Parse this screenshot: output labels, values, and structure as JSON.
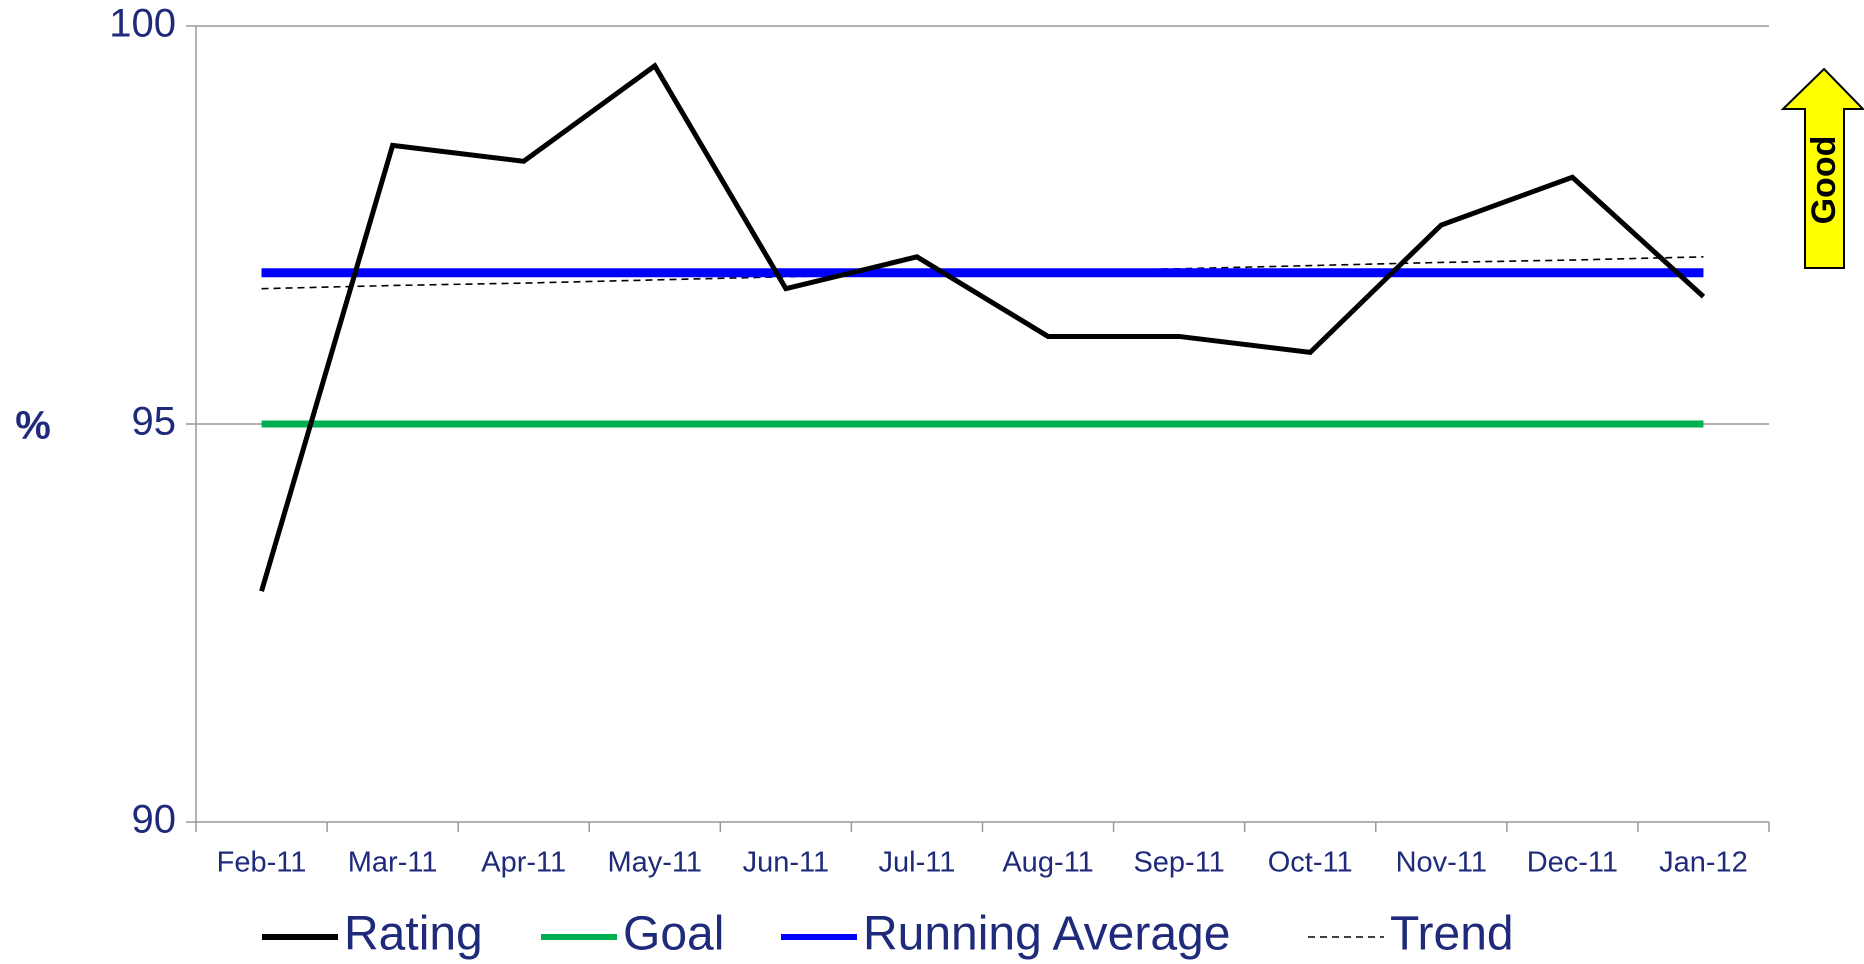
{
  "chart_data": {
    "type": "line",
    "y_label": "%",
    "annotations": [
      "Good"
    ],
    "categories": [
      "Feb-11",
      "Mar-11",
      "Apr-11",
      "May-11",
      "Jun-11",
      "Jul-11",
      "Aug-11",
      "Sep-11",
      "Oct-11",
      "Nov-11",
      "Dec-11",
      "Jan-12"
    ],
    "series": [
      {
        "name": "Rating",
        "color": "#000000",
        "values": [
          92.9,
          98.5,
          98.3,
          99.5,
          96.7,
          97.1,
          96.1,
          96.1,
          95.9,
          97.5,
          98.1,
          96.6
        ]
      },
      {
        "name": "Goal",
        "color": "#00b050",
        "values": [
          95,
          95,
          95,
          95,
          95,
          95,
          95,
          95,
          95,
          95,
          95,
          95
        ]
      },
      {
        "name": "Running Average",
        "color": "#0000ff",
        "values": [
          96.9,
          96.9,
          96.9,
          96.9,
          96.9,
          96.9,
          96.9,
          96.9,
          96.9,
          96.9,
          96.9,
          96.9
        ]
      },
      {
        "name": "Trend",
        "color": "#000000",
        "dashed": true,
        "values": [
          96.7,
          96.74,
          96.77,
          96.81,
          96.85,
          96.88,
          96.92,
          96.95,
          96.99,
          97.03,
          97.06,
          97.1
        ]
      }
    ],
    "ylim": [
      90,
      100
    ],
    "yticks": [
      90,
      95,
      100
    ],
    "grid": true,
    "legend": "bottom"
  }
}
